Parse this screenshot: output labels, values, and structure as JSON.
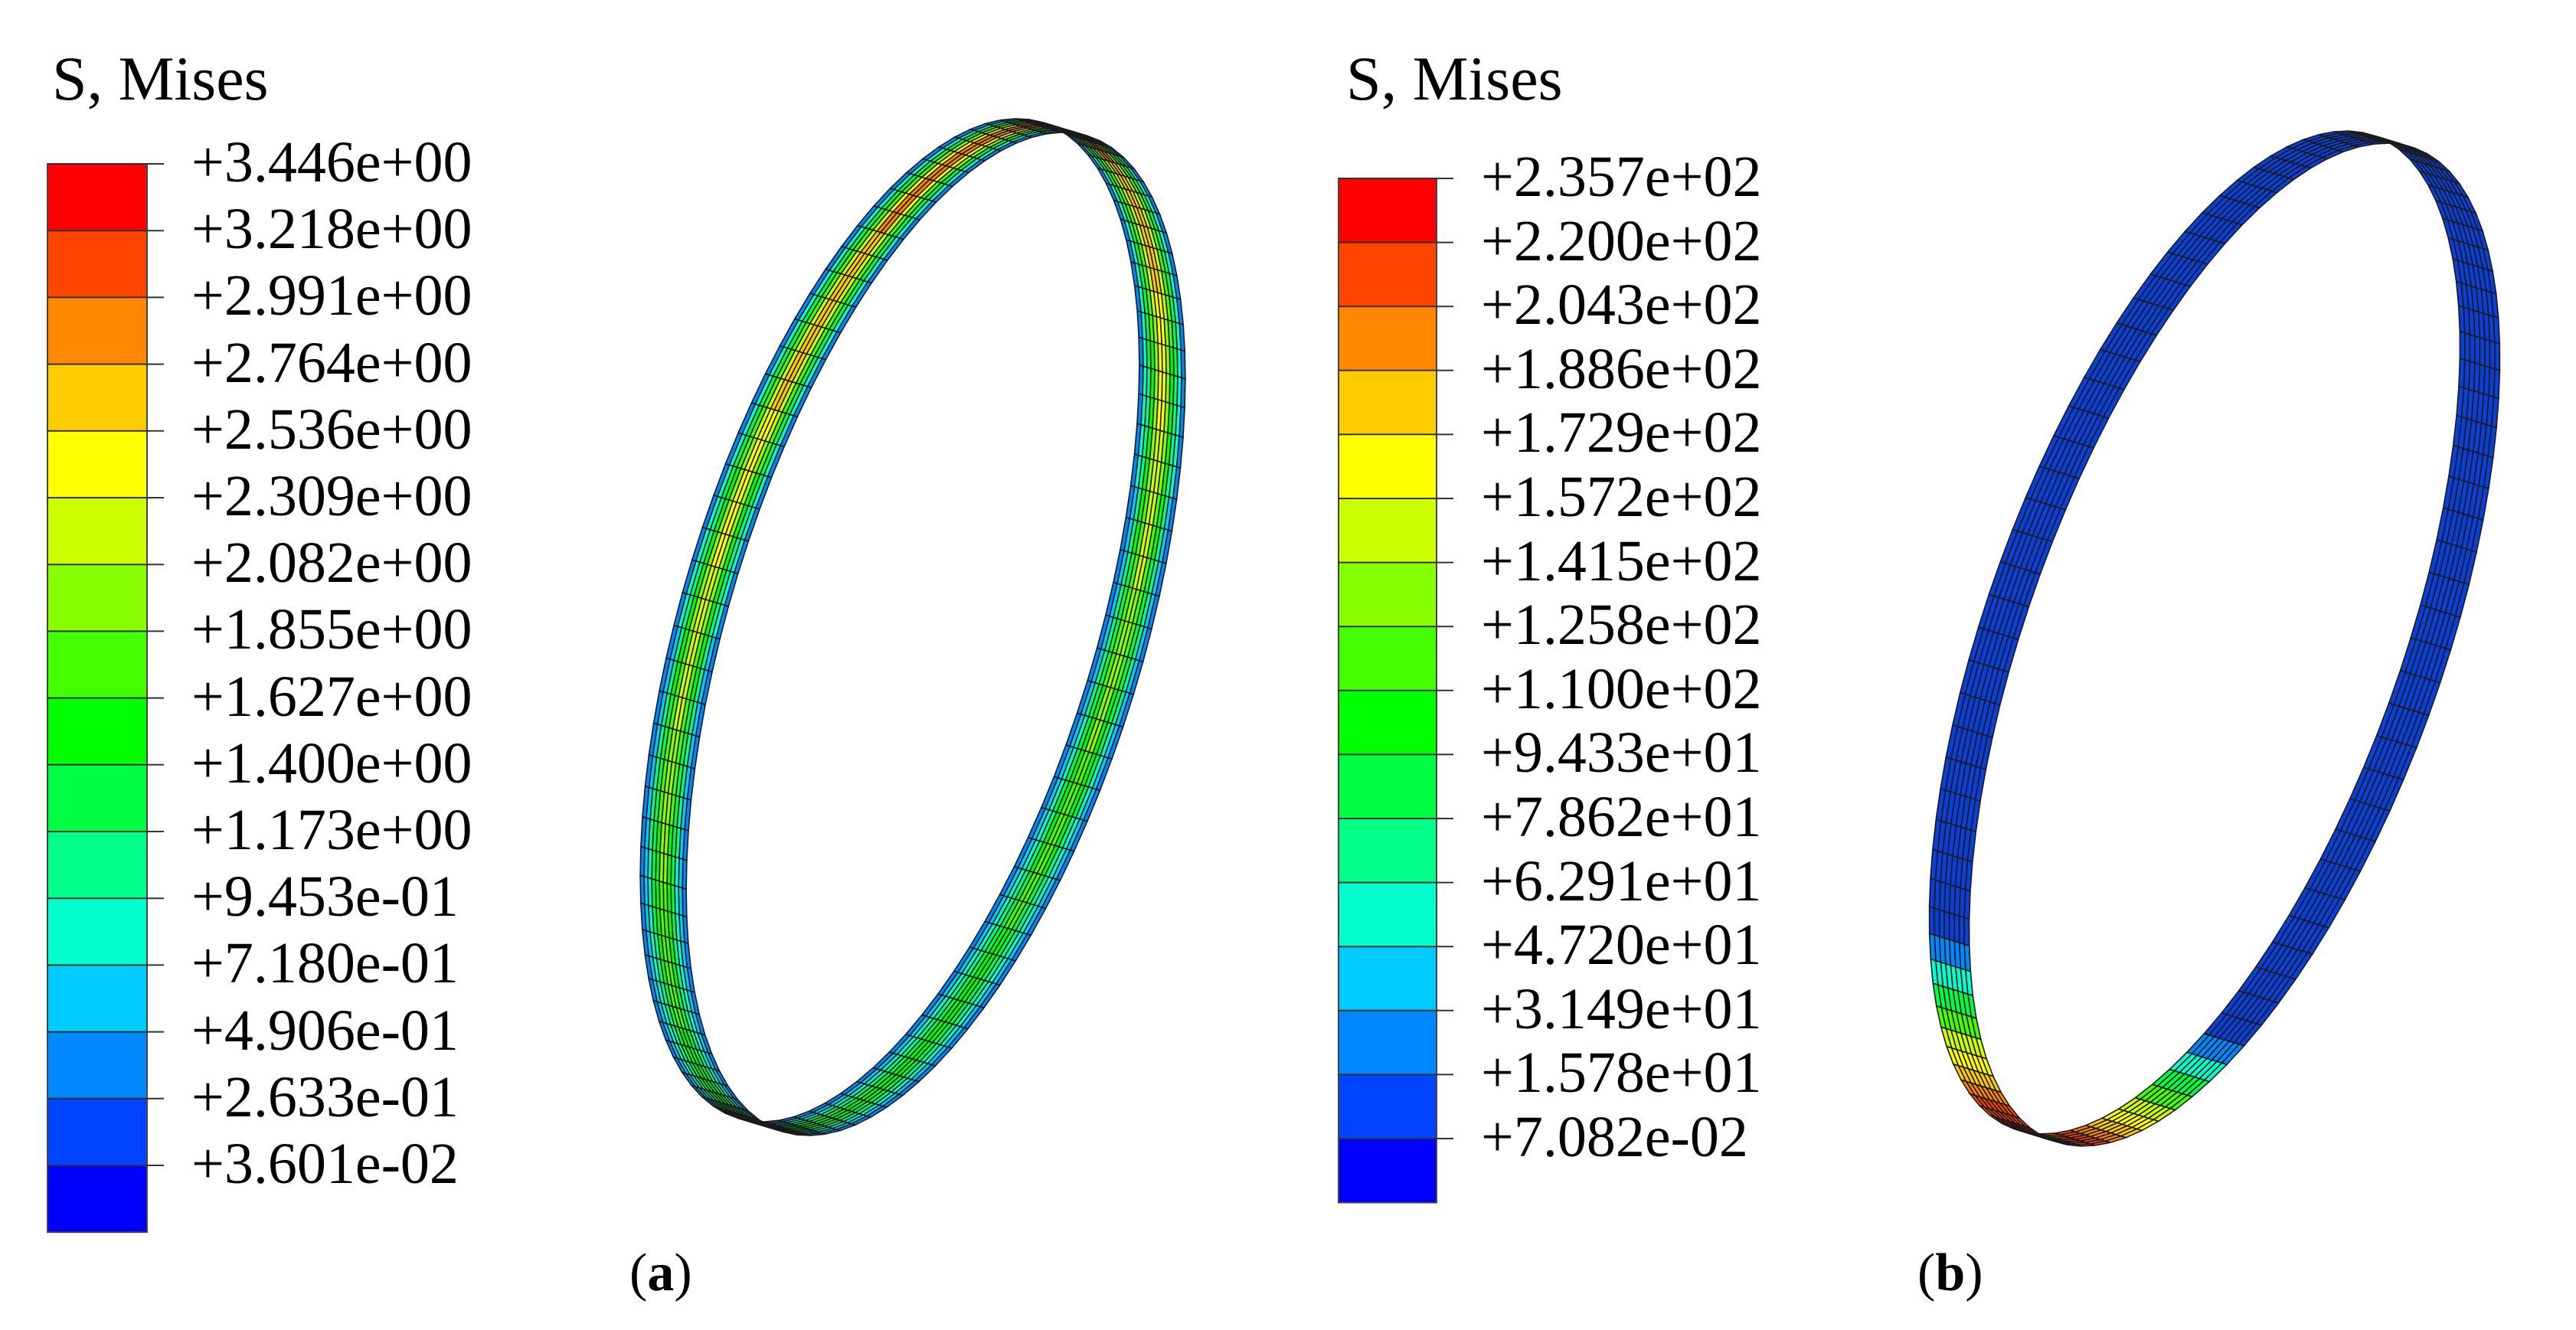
{
  "panels": [
    {
      "id": "a",
      "title": "S, Mises",
      "caption_letter": "a",
      "legend_values": [
        "+3.446e+00",
        "+3.218e+00",
        "+2.991e+00",
        "+2.764e+00",
        "+2.536e+00",
        "+2.309e+00",
        "+2.082e+00",
        "+1.855e+00",
        "+1.627e+00",
        "+1.400e+00",
        "+1.173e+00",
        "+9.453e-01",
        "+7.180e-01",
        "+4.906e-01",
        "+2.633e-01",
        "+3.601e-02"
      ]
    },
    {
      "id": "b",
      "title": "S, Mises",
      "caption_letter": "b",
      "legend_values": [
        "+2.357e+02",
        "+2.200e+02",
        "+2.043e+02",
        "+1.886e+02",
        "+1.729e+02",
        "+1.572e+02",
        "+1.415e+02",
        "+1.258e+02",
        "+1.100e+02",
        "+9.433e+01",
        "+7.862e+01",
        "+6.291e+01",
        "+4.720e+01",
        "+3.149e+01",
        "+1.578e+01",
        "+7.082e-02"
      ]
    }
  ],
  "colors": {
    "contour_scale": [
      "#ff0000",
      "#ff4400",
      "#ff8800",
      "#ffcc00",
      "#ffff00",
      "#ccff00",
      "#88ff00",
      "#44ff00",
      "#00ff00",
      "#00ff44",
      "#00ff88",
      "#00ffcc",
      "#00ccff",
      "#0088ff",
      "#0044ff",
      "#0000ff"
    ],
    "mesh_lines": "#1a1a1a",
    "low_stress_blue": "#0a3fd8"
  }
}
